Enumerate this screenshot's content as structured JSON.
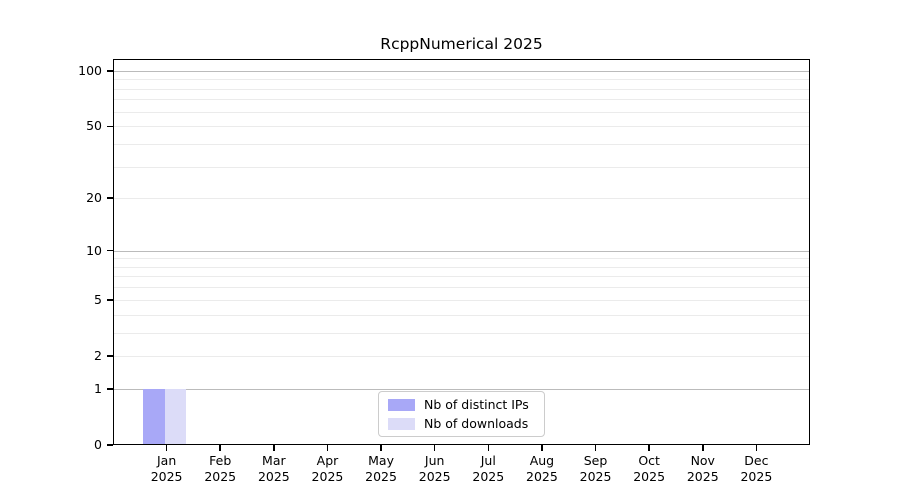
{
  "chart_data": {
    "type": "bar",
    "title": "RcppNumerical 2025",
    "categories": [
      {
        "month": "Jan",
        "year": "2025"
      },
      {
        "month": "Feb",
        "year": "2025"
      },
      {
        "month": "Mar",
        "year": "2025"
      },
      {
        "month": "Apr",
        "year": "2025"
      },
      {
        "month": "May",
        "year": "2025"
      },
      {
        "month": "Jun",
        "year": "2025"
      },
      {
        "month": "Jul",
        "year": "2025"
      },
      {
        "month": "Aug",
        "year": "2025"
      },
      {
        "month": "Sep",
        "year": "2025"
      },
      {
        "month": "Oct",
        "year": "2025"
      },
      {
        "month": "Nov",
        "year": "2025"
      },
      {
        "month": "Dec",
        "year": "2025"
      }
    ],
    "series": [
      {
        "name": "Nb of distinct IPs",
        "color": "#a8a8f7",
        "values": [
          1,
          0,
          0,
          0,
          0,
          0,
          0,
          0,
          0,
          0,
          0,
          0
        ]
      },
      {
        "name": "Nb of downloads",
        "color": "#dcdcf8",
        "values": [
          1,
          0,
          0,
          0,
          0,
          0,
          0,
          0,
          0,
          0,
          0,
          0
        ]
      }
    ],
    "y_scale": "log1p",
    "ylim": [
      0,
      116
    ],
    "y_tick_labels": [
      100,
      50,
      20,
      10,
      5,
      2,
      1,
      0
    ],
    "y_gridlines_major": [
      100,
      10,
      1
    ],
    "y_gridlines_minor": [
      90,
      80,
      70,
      60,
      50,
      40,
      30,
      20,
      9,
      8,
      7,
      6,
      5,
      4,
      3,
      2
    ],
    "grid": true,
    "legend_position": "lower center",
    "xlabel": "",
    "ylabel": ""
  },
  "colors": {
    "background": "#ffffff",
    "axis": "#000000",
    "text": "#000000",
    "grid_major": "#bbbbbb",
    "grid_minor": "#ebebeb",
    "legend_border": "#cccccc"
  }
}
